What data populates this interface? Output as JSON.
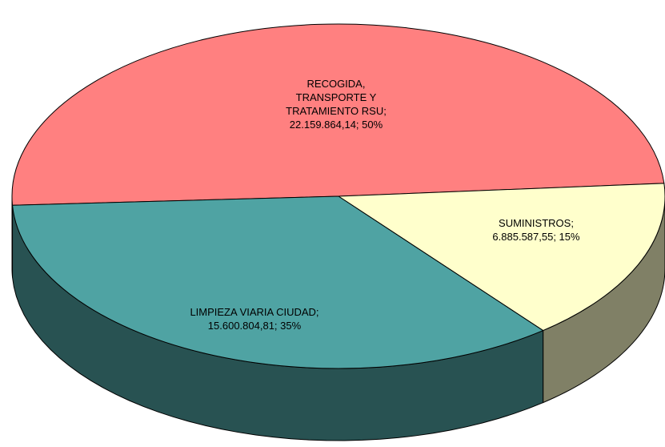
{
  "chart_data": {
    "type": "pie3d",
    "value_labels": [
      "RECOGIDA, TRANSPORTE Y TRATAMIENTO RSU; 22.159.864,14; 50%",
      "SUMINISTROS; 6.885.587,55; 15%",
      "LIMPIEZA VIARIA CIUDAD; 15.600.804,81; 35%"
    ],
    "values": [
      22159864.14,
      6885587.55,
      15600804.81
    ],
    "colors": [
      "#ff8080",
      "#ffffcc",
      "#4fa3a3"
    ]
  }
}
